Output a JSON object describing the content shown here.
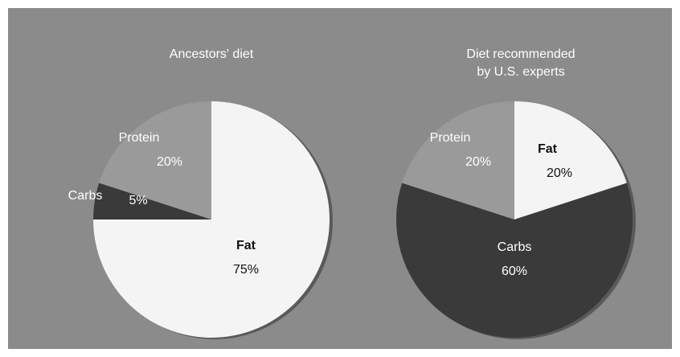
{
  "chart_data": [
    {
      "type": "pie",
      "title": "Ancestors' diet",
      "slices": [
        {
          "label": "Fat",
          "value": 75,
          "value_label": "75%",
          "color": "#f4f4f4"
        },
        {
          "label": "Carbs",
          "value": 5,
          "value_label": "5%",
          "color": "#3a3a3a"
        },
        {
          "label": "Protein",
          "value": 20,
          "value_label": "20%",
          "color": "#9a9a9a"
        }
      ]
    },
    {
      "type": "pie",
      "title": "Diet recommended by U.S. experts",
      "title_lines": [
        "Diet recommended",
        "by U.S. experts"
      ],
      "slices": [
        {
          "label": "Fat",
          "value": 20,
          "value_label": "20%",
          "color": "#f4f4f4"
        },
        {
          "label": "Carbs",
          "value": 60,
          "value_label": "60%",
          "color": "#3a3a3a"
        },
        {
          "label": "Protein",
          "value": 20,
          "value_label": "20%",
          "color": "#9a9a9a"
        }
      ]
    }
  ],
  "colors": {
    "background": "#8b8b8b",
    "light_text": "#ffffff",
    "dark_text": "#111111"
  }
}
